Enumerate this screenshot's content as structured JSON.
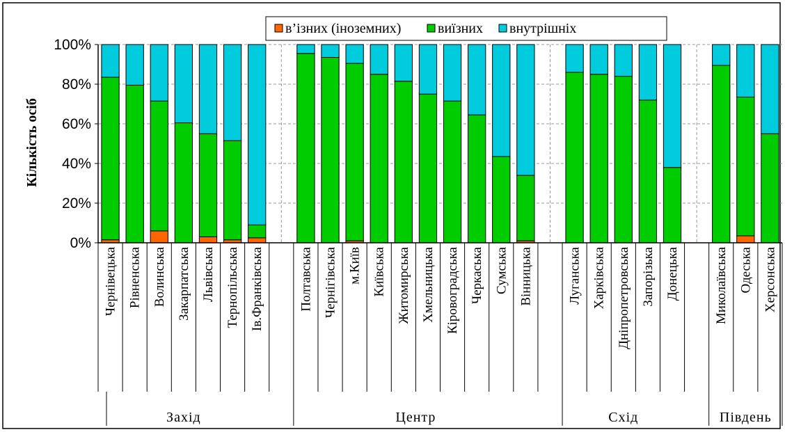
{
  "chart_data": {
    "type": "bar",
    "stacked": true,
    "ylabel": "Кількість осіб",
    "ylim": [
      0,
      100
    ],
    "y_ticks": [
      "0%",
      "20%",
      "40%",
      "60%",
      "80%",
      "100%"
    ],
    "grid": true,
    "legend_position": "top",
    "categories": [
      "Чернівецька",
      "Рівненська",
      "Волинська",
      "Закарпатська",
      "Львівська",
      "Тернопільська",
      "Ів.Франківська",
      "Полтавська",
      "Чернігівська",
      "м.Київ",
      "Київська",
      "Житомирська",
      "Хмельницька",
      "Кіровоградська",
      "Черкаська",
      "Сумська",
      "Вінницька",
      "Луганська",
      "Харківська",
      "Дніпропетровська",
      "Запорізька",
      "Донецька",
      "Миколаївська",
      "Одеська",
      "Херсонська"
    ],
    "groups": [
      {
        "name": "Захід",
        "count": 7
      },
      {
        "name": "Центр",
        "count": 10
      },
      {
        "name": "Схід",
        "count": 5
      },
      {
        "name": "Південь",
        "count": 3
      }
    ],
    "series": [
      {
        "name": "в’їзних (іноземних)",
        "color": "#FF6600",
        "values": [
          1.5,
          0,
          6,
          0,
          3,
          1.5,
          2.5,
          0,
          0,
          1,
          0,
          0,
          0,
          0,
          0,
          0,
          1,
          0,
          0,
          0,
          0,
          0,
          0,
          3.5,
          0
        ]
      },
      {
        "name": "виїзних",
        "color": "#00CC00",
        "values": [
          82,
          79.5,
          65.5,
          60.5,
          52,
          50,
          6.5,
          95.5,
          93.5,
          89.5,
          85,
          81.5,
          75,
          71.5,
          64.5,
          43.5,
          33,
          86,
          85,
          84,
          72,
          38,
          89.5,
          70,
          55
        ]
      },
      {
        "name": "внутрішніх",
        "color": "#00CCDD",
        "values": [
          16.5,
          20.5,
          28.5,
          39.5,
          45,
          48.5,
          91,
          4.5,
          6.5,
          9.5,
          15,
          18.5,
          25,
          28.5,
          35.5,
          56.5,
          66,
          14,
          15,
          16,
          28,
          62,
          10.5,
          26.5,
          45
        ]
      }
    ]
  },
  "legend": {
    "items": [
      "в’ізних (іноземних)",
      "виїзних",
      "внутрішніх"
    ],
    "colors": [
      "#FF6600",
      "#00CC00",
      "#00CCDD"
    ]
  }
}
